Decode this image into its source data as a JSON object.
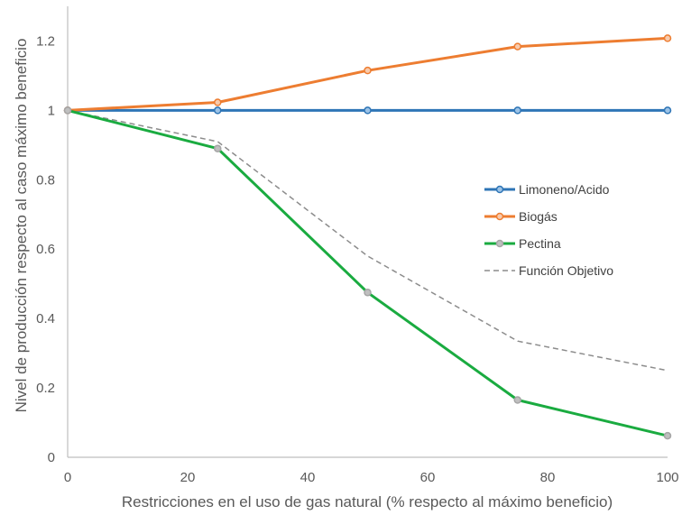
{
  "chart_data": {
    "type": "line",
    "xlabel": "Restricciones en el uso de gas natural (% respecto al máximo beneficio)",
    "ylabel": "Nivel de producción respecto al caso máximo beneficio",
    "x": [
      0,
      25,
      50,
      75,
      100
    ],
    "xlim": [
      0,
      100
    ],
    "ylim": [
      0,
      1.3
    ],
    "xticks": [
      0,
      20,
      40,
      60,
      80,
      100
    ],
    "yticks": [
      0,
      0.2,
      0.4,
      0.6,
      0.8,
      1,
      1.2
    ],
    "xtick_labels": [
      "0",
      "20",
      "40",
      "60",
      "80",
      "100"
    ],
    "ytick_labels": [
      "0",
      "0.2",
      "0.4",
      "0.6",
      "0.8",
      "1",
      "1.2"
    ],
    "grid": false,
    "legend_position": "right",
    "series": [
      {
        "name": "Limoneno/Acido",
        "values": [
          1,
          1,
          1,
          1,
          1
        ],
        "color": "#2e75b6",
        "marker_fill": "#9dc3e6",
        "dashed": false,
        "markers": true
      },
      {
        "name": "Biogás",
        "values": [
          1,
          1.023,
          1.115,
          1.184,
          1.208
        ],
        "color": "#ed7d31",
        "marker_fill": "#f8cbad",
        "dashed": false,
        "markers": true
      },
      {
        "name": "Pectina",
        "values": [
          1,
          0.89,
          0.475,
          0.165,
          0.062
        ],
        "color": "#1aab40",
        "marker_fill": "#bfbfbf",
        "marker_stroke": "#a5a5a5",
        "dashed": false,
        "markers": true
      },
      {
        "name": "Función Objetivo",
        "values": [
          1,
          0.91,
          0.58,
          0.335,
          0.25
        ],
        "color": "#8c8c8c",
        "dashed": true,
        "markers": false
      }
    ]
  }
}
